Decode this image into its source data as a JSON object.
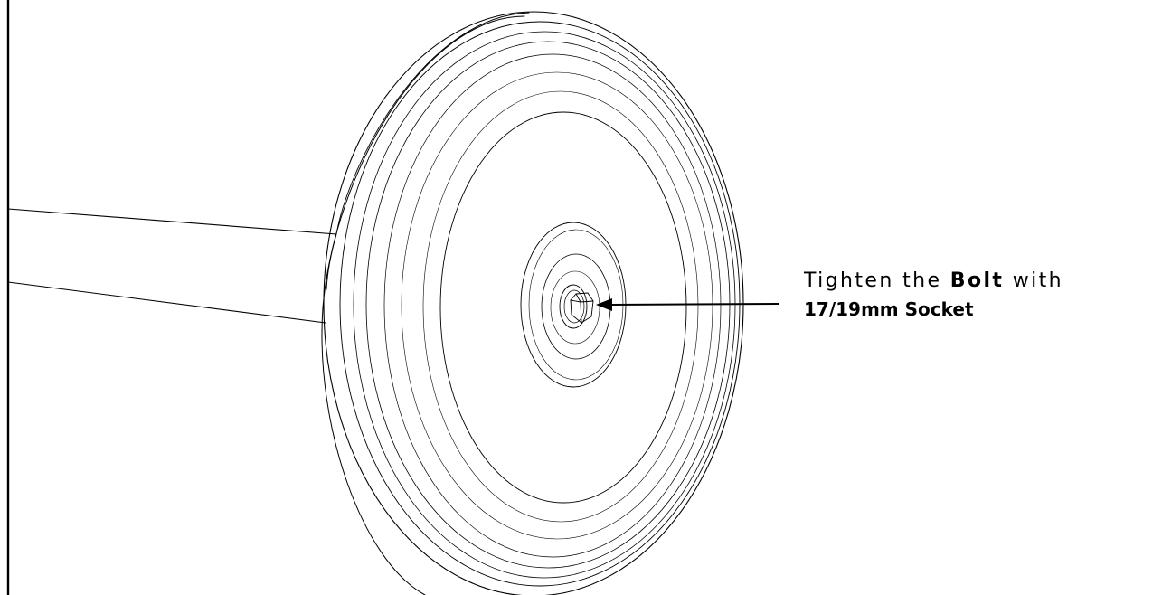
{
  "instruction": {
    "prefix": "Tighten the ",
    "emphasis": "Bolt",
    "suffix": " with",
    "tool": "17/19mm Socket"
  },
  "colors": {
    "line": "#000000",
    "background": "#ffffff"
  }
}
